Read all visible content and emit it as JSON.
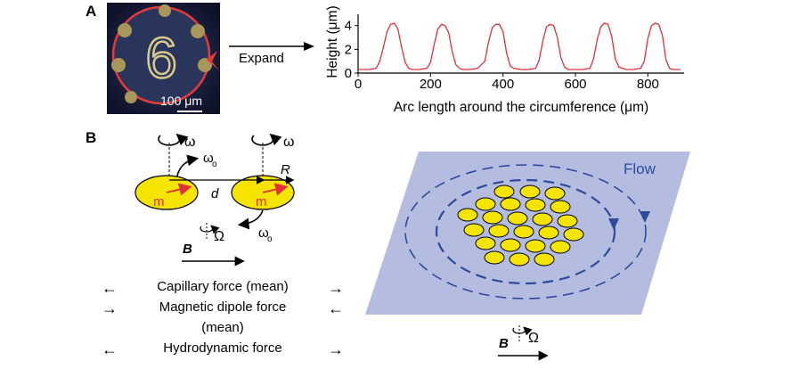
{
  "panels": {
    "a": {
      "label": "A"
    },
    "b": {
      "label": "B"
    }
  },
  "micrograph": {
    "digit": "6",
    "scale_bar": "100 μm"
  },
  "arrow_label": "Expand",
  "chart_data": {
    "type": "line",
    "xlabel": "Arc length around the circumference (μm)",
    "ylabel": "Height (μm)",
    "xlim": [
      0,
      900
    ],
    "ylim": [
      0,
      4.5
    ],
    "x_ticks": [
      0,
      200,
      400,
      600,
      800
    ],
    "y_ticks": [
      0,
      2,
      4
    ],
    "color": "#e0303a",
    "series": [
      {
        "x": [
          0,
          30,
          50,
          60,
          70,
          80,
          90,
          100,
          110,
          120,
          130,
          140,
          150,
          170,
          190,
          200,
          210,
          220,
          230,
          240,
          250,
          260,
          270,
          280,
          290,
          310,
          330,
          350,
          360,
          370,
          380,
          390,
          400,
          410,
          420,
          430,
          450,
          470,
          490,
          500,
          510,
          520,
          530,
          540,
          550,
          560,
          570,
          580,
          600,
          620,
          640,
          650,
          660,
          670,
          680,
          690,
          700,
          710,
          720,
          740,
          760,
          780,
          790,
          800,
          810,
          820,
          830,
          840,
          850,
          860,
          870,
          890
        ],
        "y": [
          0.3,
          0.3,
          0.4,
          1.0,
          2.2,
          3.5,
          4.1,
          4.2,
          3.7,
          2.2,
          0.9,
          0.4,
          0.3,
          0.3,
          0.4,
          0.9,
          2.4,
          3.7,
          4.1,
          4.0,
          3.4,
          1.8,
          0.7,
          0.4,
          0.3,
          0.3,
          0.4,
          1.0,
          2.6,
          3.8,
          4.1,
          4.1,
          3.5,
          1.7,
          0.6,
          0.4,
          0.3,
          0.3,
          0.4,
          1.1,
          2.7,
          3.9,
          4.1,
          4.0,
          3.0,
          1.3,
          0.5,
          0.3,
          0.3,
          0.3,
          0.4,
          1.2,
          2.8,
          3.9,
          4.2,
          4.1,
          3.1,
          1.2,
          0.5,
          0.3,
          0.3,
          0.4,
          1.0,
          2.9,
          4.0,
          4.2,
          4.1,
          3.2,
          1.1,
          0.4,
          0.3,
          0.3
        ]
      }
    ]
  },
  "diagram_b": {
    "omega": "ω",
    "omega_sub": "o",
    "R": "R",
    "d": "d",
    "m": "m",
    "Omega": "Ω",
    "B": "B",
    "flow": "Flow"
  },
  "legend": [
    {
      "text": "Capillary force (mean)",
      "style": "outward"
    },
    {
      "text": "Magnetic dipole force",
      "style": "inward"
    },
    {
      "text": "(mean)",
      "style": "none"
    },
    {
      "text": "Hydrodynamic force",
      "style": "outward"
    }
  ],
  "colors": {
    "disk": "#f4e400",
    "red": "#e0303a",
    "panel_bg": "#b4bde0",
    "flow_blue": "#2d4a9c"
  }
}
